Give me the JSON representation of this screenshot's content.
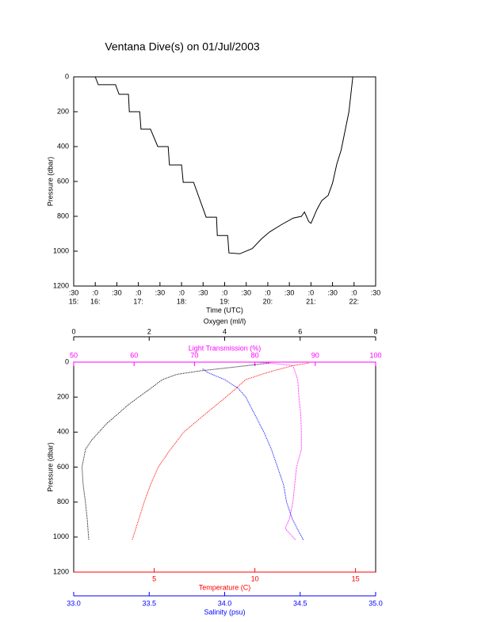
{
  "chart_data": [
    {
      "type": "line",
      "title": "Ventana Dive(s) on 01/Jul/2003",
      "xlabel": "Time (UTC)",
      "ylabel": "Pressure (dbar)",
      "xlim": [
        15.5,
        22.5
      ],
      "ylim": [
        1200,
        0
      ],
      "xticks": [
        {
          "value": 15.5,
          "label": ":30"
        },
        {
          "value": 16,
          "label": ":0"
        },
        {
          "value": 16.5,
          "label": ":30"
        },
        {
          "value": 17,
          "label": ":0"
        },
        {
          "value": 17.5,
          "label": ":30"
        },
        {
          "value": 18,
          "label": ":0"
        },
        {
          "value": 18.5,
          "label": ":30"
        },
        {
          "value": 19,
          "label": ":0"
        },
        {
          "value": 19.5,
          "label": ":30"
        },
        {
          "value": 20,
          "label": ":0"
        },
        {
          "value": 20.5,
          "label": ":30"
        },
        {
          "value": 21,
          "label": ":0"
        },
        {
          "value": 21.5,
          "label": ":30"
        },
        {
          "value": 22,
          "label": ":0"
        },
        {
          "value": 22.5,
          "label": ":30"
        }
      ],
      "xticks2": [
        {
          "value": 15.5,
          "label": "15:"
        },
        {
          "value": 16,
          "label": "16:"
        },
        {
          "value": 17,
          "label": "17:"
        },
        {
          "value": 18,
          "label": "18:"
        },
        {
          "value": 19,
          "label": "19:"
        },
        {
          "value": 20,
          "label": "20:"
        },
        {
          "value": 21,
          "label": "21:"
        },
        {
          "value": 22,
          "label": "22:"
        }
      ],
      "yticks": [
        0,
        200,
        400,
        600,
        800,
        1000,
        1200
      ],
      "series": [
        {
          "color": "#000000",
          "x": [
            16.0,
            16.07,
            16.47,
            16.55,
            16.77,
            16.79,
            17.03,
            17.06,
            17.28,
            17.45,
            17.69,
            17.72,
            18.0,
            18.04,
            18.28,
            18.57,
            18.81,
            18.83,
            19.07,
            19.1,
            19.35,
            19.64,
            19.85,
            20.04,
            20.3,
            20.59,
            20.78,
            20.85,
            20.95,
            21.0,
            21.14,
            21.25,
            21.4,
            21.5,
            21.6,
            21.7,
            21.88,
            21.97
          ],
          "values": [
            0,
            45,
            45,
            100,
            100,
            200,
            200,
            300,
            300,
            400,
            400,
            505,
            505,
            605,
            605,
            805,
            805,
            910,
            910,
            1010,
            1015,
            985,
            930,
            890,
            850,
            810,
            800,
            775,
            830,
            840,
            760,
            710,
            680,
            610,
            500,
            420,
            200,
            0
          ]
        }
      ]
    },
    {
      "type": "line",
      "ylabel": "Pressure (dbar)",
      "ylim": [
        1200,
        0
      ],
      "yticks": [
        0,
        200,
        400,
        600,
        800,
        1000,
        1200
      ],
      "xaxes": [
        {
          "label": "Oxygen (ml/l)",
          "xlim": [
            0,
            8
          ],
          "xticks": [
            0,
            2,
            4,
            6,
            8
          ],
          "color": "#000000",
          "side": "top"
        },
        {
          "label": "Light Transmission (%)",
          "xlim": [
            50,
            100
          ],
          "xticks": [
            50,
            60,
            70,
            80,
            90,
            100
          ],
          "color": "#ff00ff",
          "side": "top"
        },
        {
          "label": "Temperature (C)",
          "xlim": [
            1,
            16
          ],
          "xticks": [
            5,
            10,
            15
          ],
          "color": "#ff0000",
          "side": "bottom"
        },
        {
          "label": "Salinity (psu)",
          "xlim": [
            33,
            35
          ],
          "xticks": [
            {
              "value": 33,
              "label": "33.0"
            },
            {
              "value": 33.5,
              "label": "33.5"
            },
            {
              "value": 34,
              "label": "34.0"
            },
            {
              "value": 34.5,
              "label": "34.5"
            },
            {
              "value": 35,
              "label": "35.0"
            }
          ],
          "color": "#0000ff",
          "side": "bottom"
        }
      ],
      "series": [
        {
          "axis": 0,
          "color": "#000000",
          "x": [
            0.4,
            0.36,
            0.31,
            0.25,
            0.22,
            0.31,
            0.46,
            0.67,
            0.88,
            1.15,
            1.41,
            1.72,
            2.04,
            2.35,
            2.73,
            3.36,
            3.78,
            4.6,
            5.2
          ],
          "values": [
            1015,
            900,
            800,
            700,
            600,
            500,
            450,
            400,
            350,
            300,
            250,
            200,
            150,
            100,
            70,
            50,
            40,
            20,
            5
          ]
        },
        {
          "axis": 1,
          "color": "#ff00ff",
          "x": [
            86.7,
            85.0,
            85.7,
            86.3,
            86.6,
            86.9,
            87.7,
            87.7,
            87.6,
            87.3,
            87.1,
            86.6,
            86.3,
            82.4,
            80.0
          ],
          "values": [
            1015,
            950,
            900,
            800,
            700,
            600,
            500,
            400,
            300,
            200,
            100,
            50,
            20,
            5,
            0
          ]
        },
        {
          "axis": 2,
          "color": "#ff0000",
          "x": [
            3.91,
            4.23,
            4.5,
            4.82,
            5.2,
            5.8,
            6.47,
            7.5,
            8.56,
            9.07,
            9.54,
            10.33,
            10.92,
            11.9,
            12.7
          ],
          "values": [
            1015,
            900,
            800,
            700,
            600,
            500,
            400,
            300,
            200,
            150,
            100,
            70,
            50,
            20,
            5
          ]
        },
        {
          "axis": 3,
          "color": "#0000ff",
          "x": [
            34.52,
            34.45,
            34.41,
            34.39,
            34.35,
            34.31,
            34.26,
            34.2,
            34.14,
            34.09,
            34.0,
            33.89,
            33.85
          ],
          "values": [
            1015,
            900,
            800,
            700,
            600,
            500,
            400,
            300,
            200,
            150,
            100,
            60,
            36
          ]
        }
      ]
    }
  ]
}
